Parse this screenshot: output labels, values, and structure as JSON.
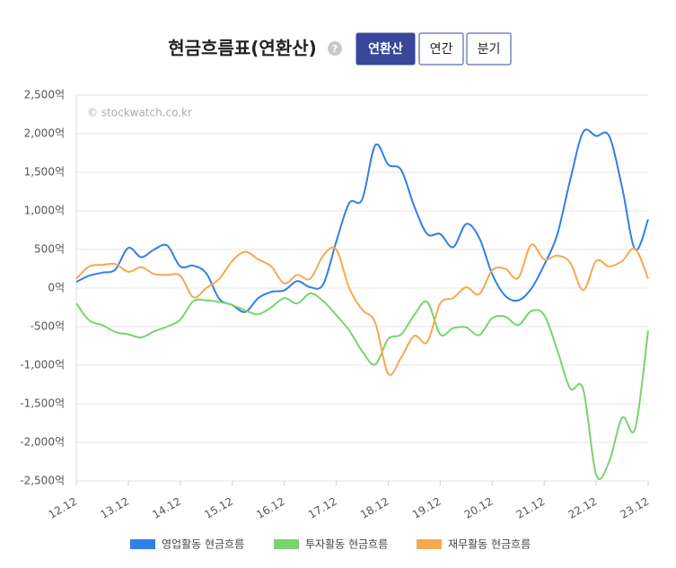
{
  "chart_data": {
    "type": "line",
    "title": "현금흐름표(연환산)",
    "help_icon": "?",
    "buttons": [
      "연환산",
      "연간",
      "분기"
    ],
    "active_button": 0,
    "watermark": "© stockwatch.co.kr",
    "categories": [
      "12.12",
      null,
      null,
      null,
      "13.12",
      null,
      null,
      null,
      "14.12",
      null,
      null,
      null,
      "15.12",
      null,
      null,
      null,
      "16.12",
      null,
      null,
      null,
      "17.12",
      null,
      null,
      null,
      "18.12",
      null,
      null,
      null,
      "19.12",
      null,
      null,
      null,
      "20.12",
      null,
      null,
      null,
      "21.12",
      null,
      null,
      null,
      "22.12",
      null,
      null,
      null,
      "23.12"
    ],
    "series": [
      {
        "name": "영업활동 현금흐름",
        "color": "#2f80e8",
        "values": [
          80,
          160,
          200,
          240,
          520,
          400,
          500,
          550,
          280,
          290,
          190,
          -140,
          -220,
          -310,
          -130,
          -50,
          -30,
          90,
          10,
          50,
          600,
          1100,
          1150,
          1850,
          1600,
          1530,
          1060,
          700,
          700,
          530,
          830,
          650,
          180,
          -100,
          -160,
          -10,
          300,
          690,
          1400,
          2020,
          1970,
          1970,
          1300,
          500,
          890
        ]
      },
      {
        "name": "투자활동 현금흐름",
        "color": "#7ad36e",
        "values": [
          -200,
          -420,
          -480,
          -570,
          -600,
          -640,
          -560,
          -500,
          -410,
          -170,
          -160,
          -180,
          -220,
          -290,
          -340,
          -250,
          -130,
          -200,
          -70,
          -170,
          -350,
          -550,
          -820,
          -990,
          -660,
          -600,
          -350,
          -180,
          -600,
          -520,
          -510,
          -610,
          -390,
          -370,
          -480,
          -300,
          -350,
          -800,
          -1300,
          -1310,
          -2420,
          -2250,
          -1680,
          -1820,
          -550
        ]
      },
      {
        "name": "재무활동 현금흐름",
        "color": "#f5a952",
        "values": [
          120,
          280,
          300,
          310,
          210,
          270,
          180,
          170,
          160,
          -120,
          0,
          120,
          350,
          470,
          370,
          280,
          60,
          170,
          120,
          420,
          500,
          0,
          -280,
          -450,
          -1110,
          -900,
          -620,
          -700,
          -200,
          -130,
          10,
          -80,
          230,
          250,
          130,
          560,
          370,
          420,
          330,
          -30,
          350,
          280,
          350,
          510,
          120
        ]
      }
    ],
    "ylim": [
      -2500,
      2500
    ],
    "yticks": [
      {
        "value": -2500,
        "label": "-2,500억"
      },
      {
        "value": -2000,
        "label": "-2,000억"
      },
      {
        "value": -1500,
        "label": "-1,500억"
      },
      {
        "value": -1000,
        "label": "-1,000억"
      },
      {
        "value": -500,
        "label": "-500억"
      },
      {
        "value": 0,
        "label": "0억"
      },
      {
        "value": 500,
        "label": "500억"
      },
      {
        "value": 1000,
        "label": "1,000억"
      },
      {
        "value": 1500,
        "label": "1,500억"
      },
      {
        "value": 2000,
        "label": "2,000억"
      },
      {
        "value": 2500,
        "label": "2,500억"
      }
    ],
    "grid": true
  }
}
